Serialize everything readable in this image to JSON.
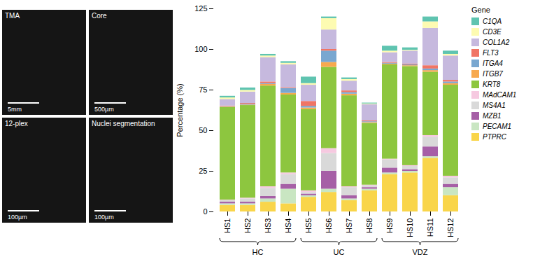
{
  "image_panels": [
    {
      "label": "TMA",
      "scale_bar": "5mm"
    },
    {
      "label": "Core",
      "scale_bar": "500µm"
    },
    {
      "label": "12-plex",
      "scale_bar": "100µm"
    },
    {
      "label": "Nuclei segmentation",
      "scale_bar": "100µm"
    }
  ],
  "chart_data": {
    "type": "bar",
    "stacked": true,
    "y_label": "Percentage (%)",
    "legend_title": "Gene",
    "legend": "right",
    "grid": false,
    "ylim": [
      0,
      125
    ],
    "yticks": [
      0,
      25,
      50,
      75,
      100,
      125
    ],
    "categories": [
      "HS1",
      "HS2",
      "HS3",
      "HS4",
      "HS5",
      "HS6",
      "HS7",
      "HS8",
      "HS9",
      "HS10",
      "HS11",
      "HS12"
    ],
    "groups": [
      {
        "name": "HC",
        "categories": [
          "HS1",
          "HS2",
          "HS3",
          "HS4"
        ]
      },
      {
        "name": "UC",
        "categories": [
          "HS5",
          "HS6",
          "HS7",
          "HS8"
        ]
      },
      {
        "name": "VDZ",
        "categories": [
          "HS9",
          "HS10",
          "HS11",
          "HS12"
        ]
      }
    ],
    "series": [
      {
        "name": "C1QA",
        "color": "#5fc4b0",
        "values": [
          1,
          1.5,
          1,
          1,
          4,
          1,
          1,
          0.5,
          3,
          1.5,
          3,
          2
        ]
      },
      {
        "name": "CD3E",
        "color": "#fdfbb2",
        "values": [
          1,
          1,
          1,
          1,
          1,
          7,
          1,
          0.5,
          1,
          0.5,
          4,
          1
        ]
      },
      {
        "name": "COL1A2",
        "color": "#c6b9de",
        "values": [
          4,
          7,
          15,
          14,
          10,
          12,
          6,
          10,
          6,
          8,
          23,
          15
        ]
      },
      {
        "name": "FLT3",
        "color": "#f07565",
        "values": [
          0.3,
          0.5,
          1,
          0.5,
          3,
          1,
          1,
          0.5,
          0.5,
          0.5,
          2,
          1
        ]
      },
      {
        "name": "ITGA4",
        "color": "#79a7d0",
        "values": [
          0.3,
          0.5,
          0.5,
          3,
          1,
          7,
          1,
          0.5,
          0.5,
          0.5,
          1,
          1
        ]
      },
      {
        "name": "ITGB7",
        "color": "#f7a94e",
        "values": [
          0.3,
          0.3,
          1,
          1,
          1,
          3,
          1,
          0.5,
          0.5,
          0.5,
          1,
          1
        ]
      },
      {
        "name": "KRT8",
        "color": "#8dc63f",
        "values": [
          57,
          57,
          62,
          48,
          50,
          50,
          56,
          38,
          58,
          61,
          39,
          56
        ]
      },
      {
        "name": "MAdCAM1",
        "color": "#f6c9e0",
        "values": [
          0.3,
          0.5,
          1,
          1,
          1,
          3,
          0.5,
          0.5,
          0.5,
          0.5,
          1,
          1
        ]
      },
      {
        "name": "MS4A1",
        "color": "#d9d9d9",
        "values": [
          1,
          2,
          5,
          6,
          1,
          11,
          5,
          1,
          5,
          2,
          6,
          4
        ]
      },
      {
        "name": "MZB1",
        "color": "#a65fa6",
        "values": [
          1,
          1,
          1.5,
          3,
          1,
          11,
          2,
          1,
          3,
          1,
          6,
          2
        ]
      },
      {
        "name": "PECAM1",
        "color": "#c9e6c2",
        "values": [
          1,
          1,
          2,
          9,
          1,
          2,
          1,
          1,
          1,
          1,
          1,
          5
        ]
      },
      {
        "name": "PTPRC",
        "color": "#f9d54a",
        "values": [
          4,
          4,
          6,
          5,
          9,
          12,
          7,
          13,
          23,
          24,
          33,
          10
        ]
      }
    ]
  }
}
